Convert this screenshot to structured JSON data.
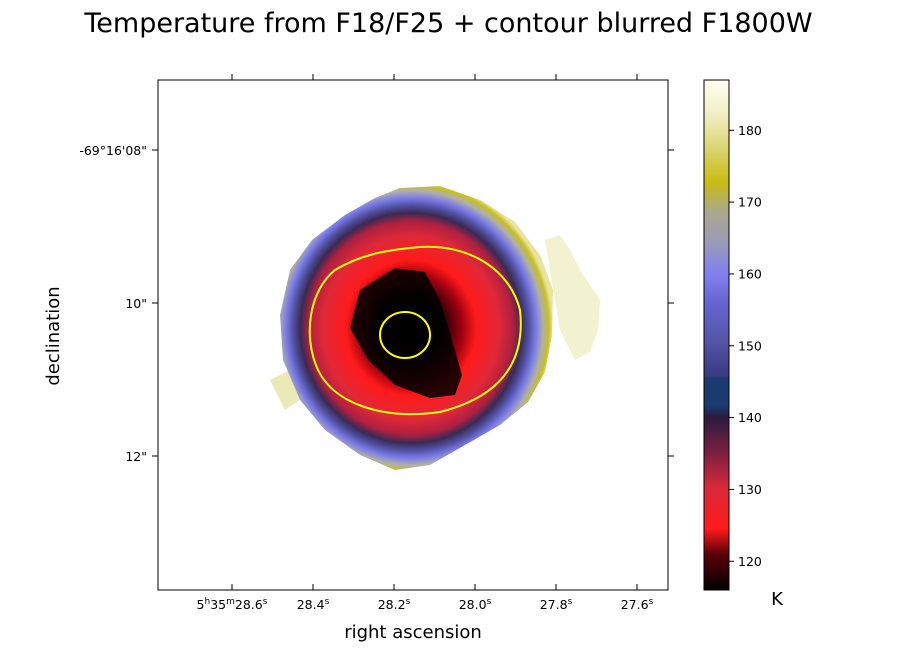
{
  "chart_data": {
    "type": "heatmap",
    "title": "Temperature from F18/F25 + contour blurred F1800W",
    "xlabel": "right ascension",
    "ylabel": "declination",
    "x_ticks": [
      {
        "label": "5h35m28.6s",
        "pre": "5",
        "h": "h",
        "mid1": "35",
        "m": "m",
        "mid2": "28.6",
        "s": "s"
      },
      {
        "label": "28.4s",
        "pre": "28.4",
        "s": "s"
      },
      {
        "label": "28.2s",
        "pre": "28.2",
        "s": "s"
      },
      {
        "label": "28.0s",
        "pre": "28.0",
        "s": "s"
      },
      {
        "label": "27.8s",
        "pre": "27.8",
        "s": "s"
      },
      {
        "label": "27.6s",
        "pre": "27.6",
        "s": "s"
      }
    ],
    "y_ticks": [
      "-69°16'08\"",
      "10\"",
      "12\""
    ],
    "colorbar": {
      "label": "K",
      "min": 116,
      "max": 187,
      "ticks": [
        120,
        130,
        140,
        150,
        160,
        170,
        180
      ]
    },
    "contour_color": "#ffff00",
    "contours": [
      {
        "level": "outer"
      },
      {
        "level": "inner"
      }
    ]
  }
}
